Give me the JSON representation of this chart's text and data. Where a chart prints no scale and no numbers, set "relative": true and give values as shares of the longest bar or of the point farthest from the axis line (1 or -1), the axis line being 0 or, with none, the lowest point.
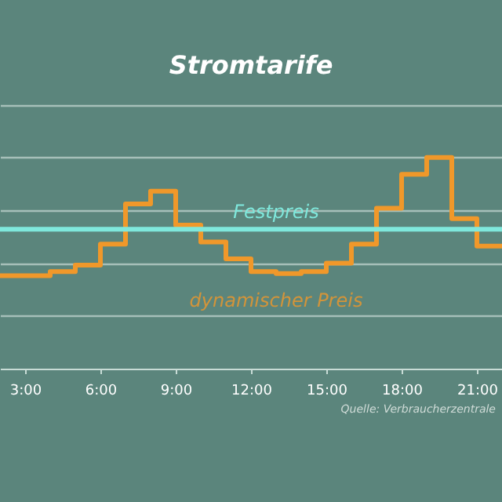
{
  "chart_data": {
    "type": "step",
    "title": "Stromtarife",
    "relative": true,
    "x": [
      2,
      4,
      5,
      6,
      7,
      8,
      9,
      10,
      11,
      12,
      13,
      14,
      15,
      16,
      17,
      18,
      19,
      20,
      21,
      22
    ],
    "xlim": [
      2,
      22
    ],
    "xticks": [
      {
        "value": 3,
        "label": "3:00"
      },
      {
        "value": 6,
        "label": "6:00"
      },
      {
        "value": 9,
        "label": "9:00"
      },
      {
        "value": 12,
        "label": "12:00"
      },
      {
        "value": 15,
        "label": "15:00"
      },
      {
        "value": 18,
        "label": "18:00"
      },
      {
        "value": 21,
        "label": "21:00"
      }
    ],
    "series": [
      {
        "name": "dynamischer Preis",
        "color": "#f0982a",
        "values": [
          0.44,
          0.46,
          0.49,
          0.59,
          0.78,
          0.84,
          0.68,
          0.6,
          0.52,
          0.46,
          0.45,
          0.46,
          0.5,
          0.59,
          0.76,
          0.92,
          1.0,
          0.71,
          0.58,
          0.58
        ]
      }
    ],
    "ref_lines": [
      {
        "axis": "y",
        "value": 0.66,
        "label": "Festpreis",
        "color": "#7fe8dc"
      }
    ],
    "annotations": [
      "Quelle: Verbraucherzentrale"
    ],
    "grid": "y",
    "line_style": "solid"
  }
}
